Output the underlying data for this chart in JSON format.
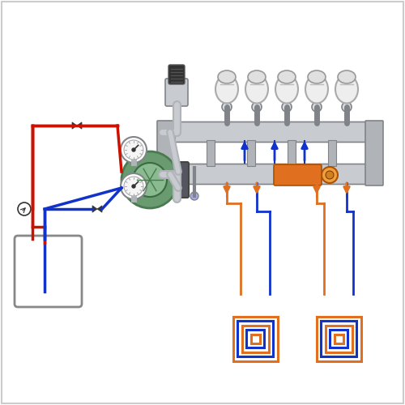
{
  "bg_color": "#ffffff",
  "red_color": "#cc1100",
  "blue_color": "#1133cc",
  "orange_color": "#e07020",
  "silver_color": "#c8ccd0",
  "silver2": "#b0b4b8",
  "silver3": "#d8dce0",
  "dark_silver": "#808488",
  "green_color": "#6a9a70",
  "green2": "#4a7a50",
  "dark_color": "#333333",
  "dark2": "#555555",
  "white": "#ffffff",
  "light_gray": "#e8eaec",
  "figsize": [
    5.0,
    5.0
  ],
  "dpi": 100,
  "border_color": "#cccccc",
  "valve_color": "#404040",
  "pipe_lw": 2.5,
  "manifold_silver": "#b8bcc0",
  "frame_color": "#909498"
}
